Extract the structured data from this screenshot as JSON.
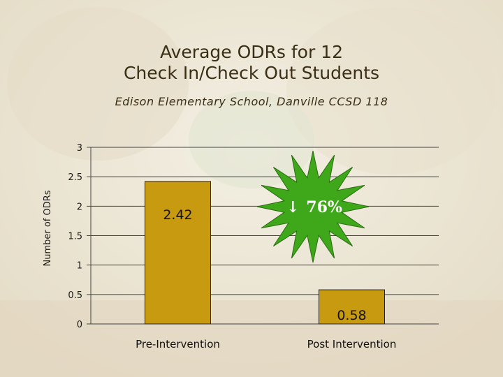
{
  "title_line1": "Average ODRs for 12",
  "title_line2": "Check In/Check Out Students",
  "subtitle": "Edison Elementary School, Danville CCSD 118",
  "chart_data": {
    "type": "bar",
    "categories": [
      "Pre-Intervention",
      "Post Intervention"
    ],
    "values": [
      2.42,
      0.58
    ],
    "value_labels": [
      "2.42",
      "0.58"
    ],
    "ylabel": "Number of ODRs",
    "ylim": [
      0,
      3
    ],
    "yticks": [
      "0",
      "0.5",
      "1",
      "1.5",
      "2",
      "2.5",
      "3"
    ],
    "grid": true,
    "bar_color": "#c89a10",
    "annotation": {
      "arrow": "↓",
      "text": "76%",
      "color": "#3fa81a"
    }
  }
}
